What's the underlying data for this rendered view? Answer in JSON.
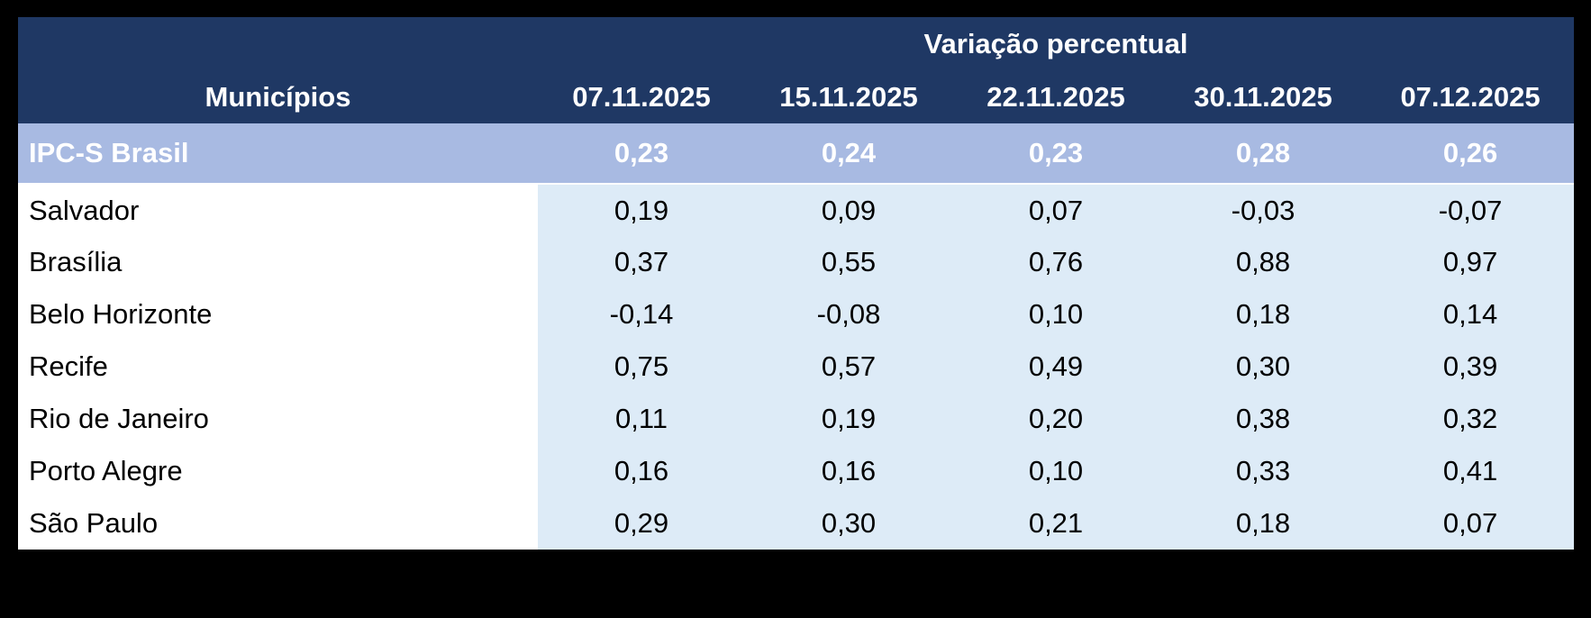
{
  "table": {
    "header": {
      "group_title": "Variação percentual",
      "municipality_col": "Municípios",
      "dates": [
        "07.11.2025",
        "15.11.2025",
        "22.11.2025",
        "30.11.2025",
        "07.12.2025"
      ]
    },
    "summary_row": {
      "name": "IPC-S Brasil",
      "values": [
        "0,23",
        "0,24",
        "0,23",
        "0,28",
        "0,26"
      ]
    },
    "rows": [
      {
        "name": "Salvador",
        "values": [
          "0,19",
          "0,09",
          "0,07",
          "-0,03",
          "-0,07"
        ]
      },
      {
        "name": "Brasília",
        "values": [
          "0,37",
          "0,55",
          "0,76",
          "0,88",
          "0,97"
        ]
      },
      {
        "name": "Belo Horizonte",
        "values": [
          "-0,14",
          "-0,08",
          "0,10",
          "0,18",
          "0,14"
        ]
      },
      {
        "name": "Recife",
        "values": [
          "0,75",
          "0,57",
          "0,49",
          "0,30",
          "0,39"
        ]
      },
      {
        "name": "Rio de Janeiro",
        "values": [
          "0,11",
          "0,19",
          "0,20",
          "0,38",
          "0,32"
        ]
      },
      {
        "name": "Porto Alegre",
        "values": [
          "0,16",
          "0,16",
          "0,10",
          "0,33",
          "0,41"
        ]
      },
      {
        "name": "São Paulo",
        "values": [
          "0,29",
          "0,30",
          "0,21",
          "0,18",
          "0,07"
        ]
      }
    ],
    "colors": {
      "header_bg": "#1F3864",
      "summary_bg": "#A8BAE2",
      "data_bg": "#DDEBF7",
      "name_bg": "#FFFFFF",
      "page_bg": "#000000",
      "header_text": "#FFFFFF",
      "body_text": "#000000"
    }
  },
  "chart_data": {
    "type": "table",
    "title": "Variação percentual",
    "categories": [
      "07.11.2025",
      "15.11.2025",
      "22.11.2025",
      "30.11.2025",
      "07.12.2025"
    ],
    "series": [
      {
        "name": "IPC-S Brasil",
        "values": [
          0.23,
          0.24,
          0.23,
          0.28,
          0.26
        ]
      },
      {
        "name": "Salvador",
        "values": [
          0.19,
          0.09,
          0.07,
          -0.03,
          -0.07
        ]
      },
      {
        "name": "Brasília",
        "values": [
          0.37,
          0.55,
          0.76,
          0.88,
          0.97
        ]
      },
      {
        "name": "Belo Horizonte",
        "values": [
          -0.14,
          -0.08,
          0.1,
          0.18,
          0.14
        ]
      },
      {
        "name": "Recife",
        "values": [
          0.75,
          0.57,
          0.49,
          0.3,
          0.39
        ]
      },
      {
        "name": "Rio de Janeiro",
        "values": [
          0.11,
          0.19,
          0.2,
          0.38,
          0.32
        ]
      },
      {
        "name": "Porto Alegre",
        "values": [
          0.16,
          0.16,
          0.1,
          0.33,
          0.41
        ]
      },
      {
        "name": "São Paulo",
        "values": [
          0.29,
          0.3,
          0.21,
          0.18,
          0.07
        ]
      }
    ]
  }
}
